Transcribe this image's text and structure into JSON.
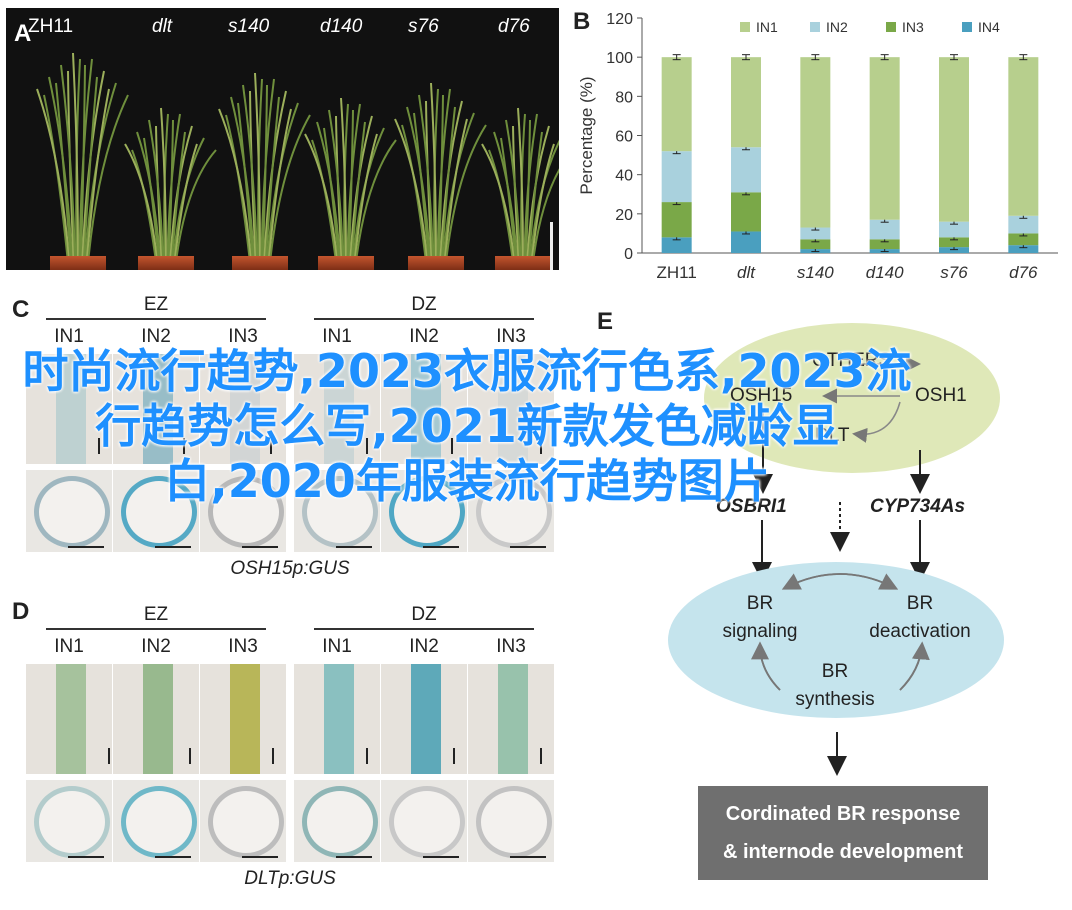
{
  "panels": {
    "A": {
      "letter": "A",
      "plants": [
        {
          "label": "ZH11",
          "italic": false
        },
        {
          "label": "dlt",
          "italic": true
        },
        {
          "label": "s140",
          "italic": true
        },
        {
          "label": "d140",
          "italic": true
        },
        {
          "label": "s76",
          "italic": true
        },
        {
          "label": "d76",
          "italic": true
        }
      ]
    },
    "B": {
      "letter": "B"
    },
    "C": {
      "letter": "C",
      "groups": [
        "EZ",
        "DZ"
      ],
      "columns": [
        "IN1",
        "IN2",
        "IN3",
        "IN1",
        "IN2",
        "IN3"
      ],
      "caption": "OSH15p:GUS"
    },
    "D": {
      "letter": "D",
      "groups": [
        "EZ",
        "DZ"
      ],
      "columns": [
        "IN1",
        "IN2",
        "IN3",
        "IN1",
        "IN2",
        "IN3"
      ],
      "caption": "DLTp:GUS"
    },
    "E": {
      "letter": "E",
      "top_nodes": [
        "OTHERS",
        "OSH15",
        "OSH1",
        "DLT"
      ],
      "mid_nodes": [
        "OSBRI1",
        "CYP734As"
      ],
      "cycle": {
        "signaling": "BR\nsignaling",
        "deactivation": "BR\ndeactivation",
        "synthesis": "BR\nsynthesis"
      },
      "result_line1": "Cordinated BR response",
      "result_line2": "& internode development"
    }
  },
  "overlay_title": "时尚流行趋势,2023衣服流行色系,2023流行趋势怎么写,2021新款发色减龄显白,2020年服装流行趋势图片",
  "chart_data": {
    "type": "bar",
    "stacked": true,
    "categories": [
      "ZH11",
      "dlt",
      "s140",
      "d140",
      "s76",
      "d76"
    ],
    "ylabel": "Percentage (%)",
    "ylim": [
      0,
      120
    ],
    "yticks": [
      0,
      20,
      40,
      60,
      80,
      100,
      120
    ],
    "legend_position": "top",
    "series": [
      {
        "name": "IN4",
        "color": "#4a9fbf",
        "values": [
          8,
          11,
          2,
          2,
          3,
          4
        ]
      },
      {
        "name": "IN3",
        "color": "#7aa848",
        "values": [
          18,
          20,
          5,
          5,
          5,
          6
        ]
      },
      {
        "name": "IN2",
        "color": "#a9d1dd",
        "values": [
          26,
          23,
          6,
          10,
          8,
          9
        ]
      },
      {
        "name": "IN1",
        "color": "#b7cf8d",
        "values": [
          48,
          46,
          87,
          83,
          84,
          81
        ]
      }
    ]
  }
}
